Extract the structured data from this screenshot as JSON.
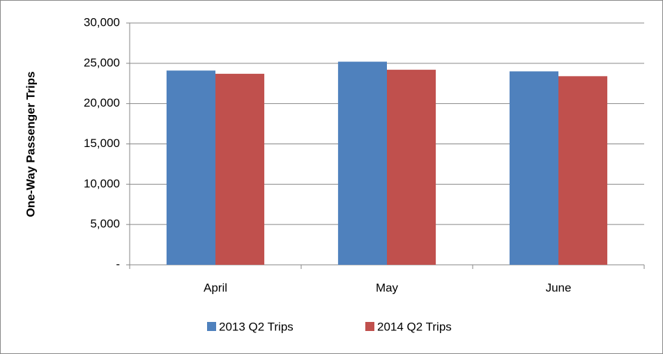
{
  "chart_data": {
    "type": "bar",
    "y_label": "One-Way Passenger Trips",
    "categories": [
      "April",
      "May",
      "June"
    ],
    "series": [
      {
        "name": "2013 Q2 Trips",
        "color": "#4f81bd",
        "values": [
          24100,
          25200,
          24000
        ]
      },
      {
        "name": "2014 Q2 Trips",
        "color": "#c0504d",
        "values": [
          23700,
          24200,
          23400
        ]
      }
    ],
    "ylim": [
      0,
      30000
    ],
    "yticks": [
      {
        "value": 0,
        "label": "-"
      },
      {
        "value": 5000,
        "label": "5,000"
      },
      {
        "value": 10000,
        "label": "10,000"
      },
      {
        "value": 15000,
        "label": "15,000"
      },
      {
        "value": 20000,
        "label": "20,000"
      },
      {
        "value": 25000,
        "label": "25,000"
      },
      {
        "value": 30000,
        "label": "30,000"
      }
    ],
    "grid": true,
    "legend": "bottom"
  }
}
